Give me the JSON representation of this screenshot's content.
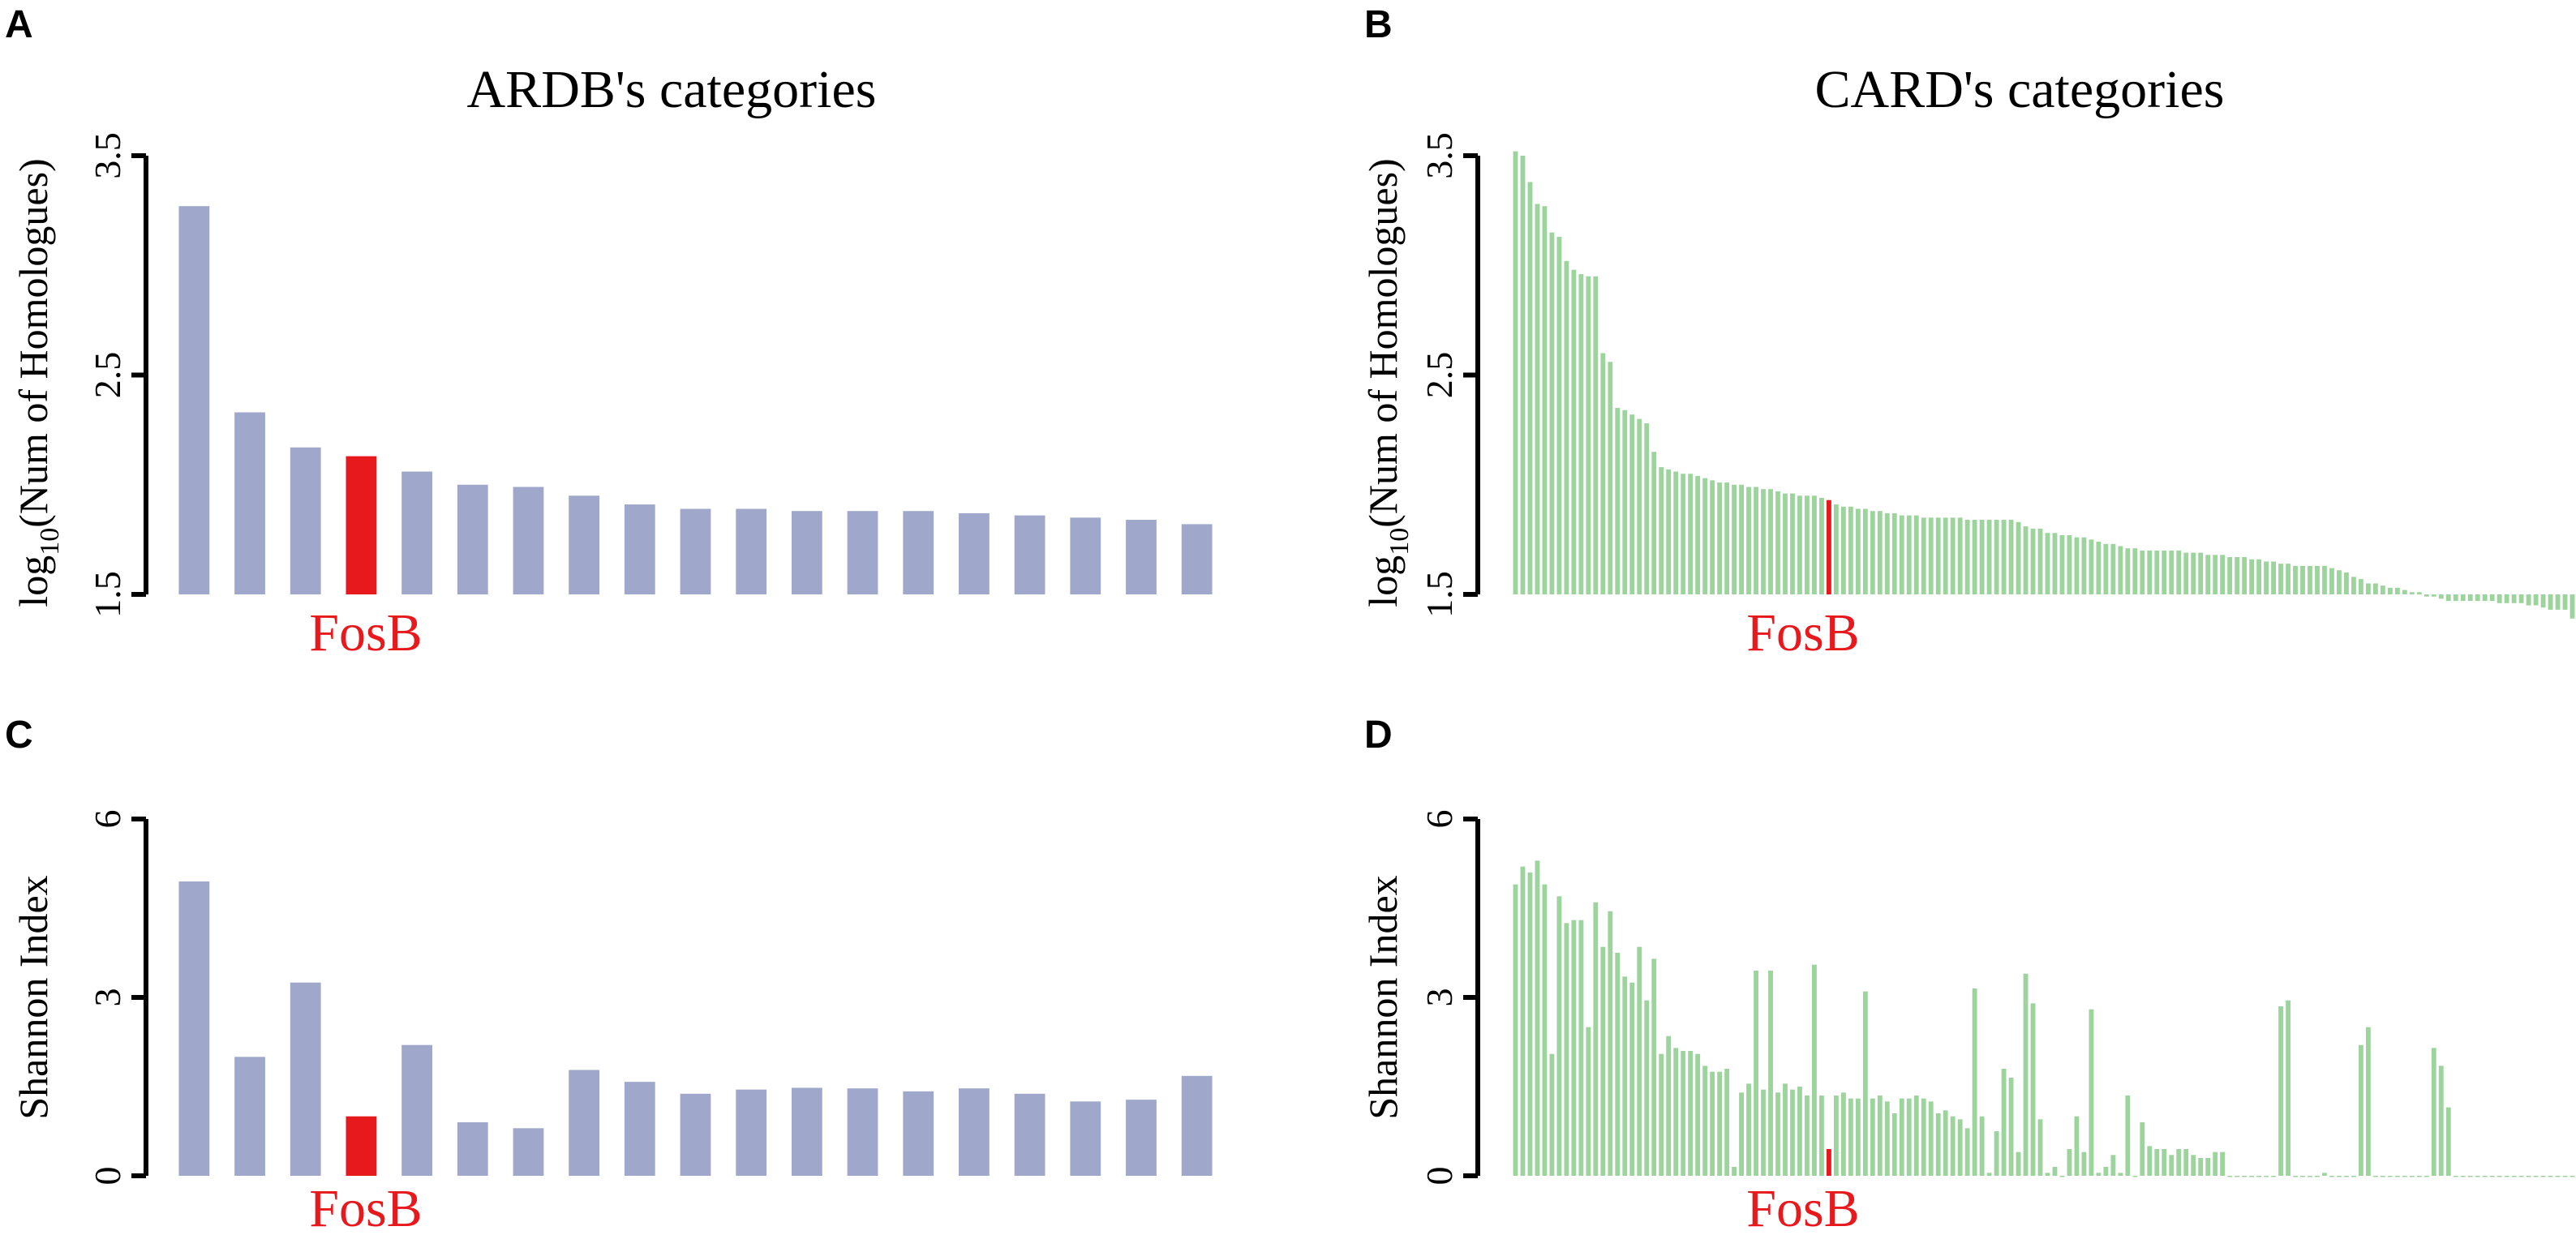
{
  "colors": {
    "ardb": "#9fa8cb",
    "card": "#9dd49d",
    "highlight": "#e8191d"
  },
  "chart_data": [
    {
      "panel": "A",
      "type": "bar",
      "title": "ARDB's categories",
      "ylabel": "log",
      "ylabel_sub": "10",
      "ylabel_rest": "(Num of Homologues)",
      "ylim": [
        1.5,
        3.5
      ],
      "yticks": [
        "1.5",
        "2.5",
        "3.5"
      ],
      "highlight_label": "FosB",
      "highlight_index": 3,
      "values": [
        3.27,
        2.33,
        2.17,
        2.13,
        2.06,
        2.0,
        1.99,
        1.95,
        1.91,
        1.89,
        1.89,
        1.88,
        1.88,
        1.88,
        1.87,
        1.86,
        1.85,
        1.84,
        1.82
      ]
    },
    {
      "panel": "B",
      "type": "bar",
      "title": "CARD's categories",
      "ylabel": "log",
      "ylabel_sub": "10",
      "ylabel_rest": "(Num of Homologues)",
      "ylim": [
        1.5,
        3.5
      ],
      "yticks": [
        "1.5",
        "2.5",
        "3.5"
      ],
      "highlight_label": "FosB",
      "highlight_index": 43,
      "values": [
        3.52,
        3.5,
        3.38,
        3.28,
        3.27,
        3.15,
        3.13,
        3.02,
        2.98,
        2.96,
        2.95,
        2.95,
        2.6,
        2.56,
        2.35,
        2.34,
        2.32,
        2.3,
        2.28,
        2.15,
        2.08,
        2.07,
        2.06,
        2.05,
        2.05,
        2.04,
        2.03,
        2.02,
        2.01,
        2.01,
        2.0,
        2.0,
        1.99,
        1.99,
        1.98,
        1.98,
        1.97,
        1.96,
        1.96,
        1.95,
        1.95,
        1.95,
        1.94,
        1.93,
        1.91,
        1.9,
        1.9,
        1.89,
        1.89,
        1.88,
        1.88,
        1.87,
        1.87,
        1.86,
        1.86,
        1.86,
        1.85,
        1.85,
        1.85,
        1.85,
        1.85,
        1.85,
        1.84,
        1.84,
        1.84,
        1.84,
        1.84,
        1.84,
        1.84,
        1.83,
        1.81,
        1.8,
        1.8,
        1.78,
        1.78,
        1.77,
        1.77,
        1.76,
        1.76,
        1.75,
        1.74,
        1.73,
        1.73,
        1.72,
        1.71,
        1.71,
        1.7,
        1.7,
        1.7,
        1.7,
        1.7,
        1.7,
        1.69,
        1.69,
        1.69,
        1.68,
        1.68,
        1.68,
        1.67,
        1.67,
        1.67,
        1.66,
        1.66,
        1.65,
        1.65,
        1.64,
        1.64,
        1.63,
        1.63,
        1.63,
        1.63,
        1.63,
        1.62,
        1.61,
        1.6,
        1.58,
        1.57,
        1.55,
        1.55,
        1.54,
        1.53,
        1.53,
        1.52,
        1.51,
        1.51,
        1.49,
        1.49,
        1.48,
        1.47,
        1.47,
        1.47,
        1.47,
        1.47,
        1.47,
        1.47,
        1.46,
        1.46,
        1.46,
        1.46,
        1.45,
        1.45,
        1.44,
        1.43,
        1.43,
        1.43,
        1.39
      ]
    },
    {
      "panel": "C",
      "type": "bar",
      "title": "",
      "ylabel": "Shannon Index",
      "ylim": [
        0,
        6
      ],
      "yticks": [
        "0",
        "3",
        "6"
      ],
      "highlight_label": "FosB",
      "highlight_index": 3,
      "values": [
        4.95,
        2.0,
        3.25,
        1.0,
        2.2,
        0.9,
        0.8,
        1.78,
        1.58,
        1.38,
        1.45,
        1.48,
        1.47,
        1.42,
        1.47,
        1.38,
        1.25,
        1.28,
        1.68
      ]
    },
    {
      "panel": "D",
      "type": "bar",
      "title": "",
      "ylabel": "Shannon Index",
      "ylim": [
        0,
        6
      ],
      "yticks": [
        "0",
        "3",
        "6"
      ],
      "highlight_label": "FosB",
      "highlight_index": 43,
      "values": [
        4.9,
        5.2,
        5.1,
        5.3,
        4.9,
        2.05,
        4.7,
        4.25,
        4.3,
        4.3,
        2.5,
        4.6,
        3.85,
        4.45,
        3.75,
        3.35,
        3.25,
        3.85,
        2.95,
        3.65,
        2.05,
        2.35,
        2.15,
        2.1,
        2.1,
        2.05,
        1.85,
        1.75,
        1.75,
        1.8,
        0.15,
        1.4,
        1.55,
        3.45,
        1.45,
        3.45,
        1.4,
        1.55,
        1.45,
        1.5,
        1.35,
        3.55,
        1.35,
        0.45,
        1.35,
        1.4,
        1.3,
        1.3,
        3.1,
        1.3,
        1.35,
        1.25,
        1.05,
        1.3,
        1.3,
        1.35,
        1.3,
        1.25,
        1.05,
        1.1,
        1.0,
        0.95,
        0.8,
        3.15,
        1.0,
        0.05,
        0.75,
        1.8,
        1.65,
        0.4,
        3.4,
        2.9,
        0.95,
        0.05,
        0.15,
        0.0,
        0.45,
        1.0,
        0.4,
        2.8,
        0.05,
        0.15,
        0.35,
        0.05,
        1.35,
        0.0,
        0.9,
        0.5,
        0.45,
        0.45,
        0.35,
        0.45,
        0.45,
        0.35,
        0.3,
        0.3,
        0.4,
        0.4,
        0.0,
        0.0,
        0.0,
        0.0,
        0.0,
        0.0,
        0.0,
        2.85,
        2.95,
        0.0,
        0.0,
        0.0,
        0.0,
        0.05,
        0.0,
        0.0,
        0.0,
        0.0,
        2.2,
        2.5,
        0.0,
        0.0,
        0.0,
        0.0,
        0.0,
        0.0,
        0.0,
        0.0,
        2.15,
        1.85,
        1.15,
        0.0,
        0.0,
        0.0,
        0.0,
        0.0,
        0.0,
        0.0,
        0.0,
        0.0,
        0.0,
        0.0,
        0.0,
        0.0,
        0.0,
        0.0,
        0.0,
        0.0
      ]
    }
  ]
}
